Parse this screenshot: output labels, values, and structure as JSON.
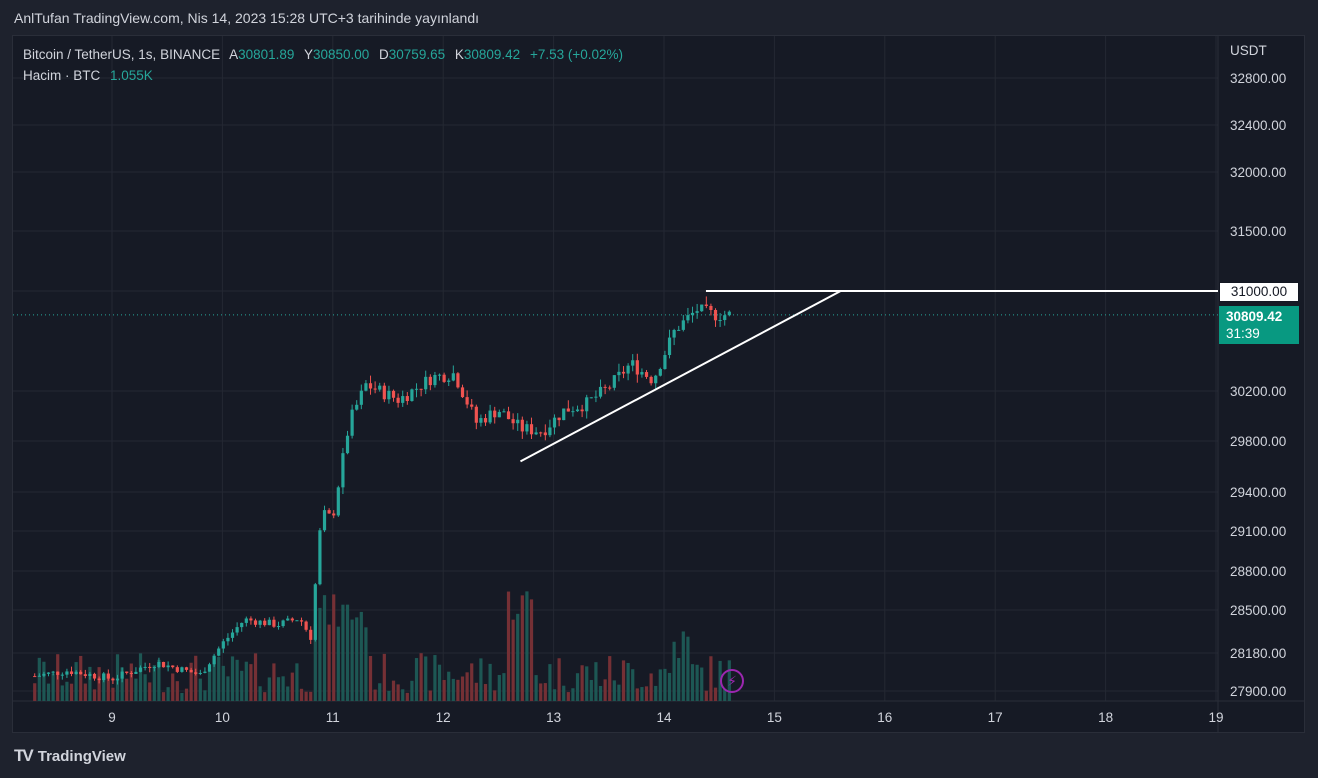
{
  "header": {
    "caption": "AnlTufan TradingView.com, Nis 14, 2023 15:28 UTC+3 tarihinde yayınlandı"
  },
  "legend": {
    "symbol": "Bitcoin / TetherUS, 1s, BINANCE",
    "open_key": "A",
    "open": "30801.89",
    "high_key": "Y",
    "high": "30850.00",
    "low_key": "D",
    "low": "30759.65",
    "close_key": "K",
    "close": "30809.42",
    "change": "+7.53 (+0.02%)",
    "volume_label": "Hacim · BTC",
    "volume_value": "1.055K"
  },
  "axis": {
    "currency": "USDT"
  },
  "price_tags": {
    "line_level": "31000.00",
    "last_price": "30809.42",
    "countdown": "31:39"
  },
  "footer": {
    "brand": "TradingView",
    "logo_text": "TV"
  },
  "icons": {
    "bolt": "lightning-icon"
  },
  "colors": {
    "up": "#26a69a",
    "down": "#ef5350",
    "background": "#161a25",
    "grid": "#242833"
  },
  "chart_data": {
    "type": "candlestick",
    "title": "Bitcoin / TetherUS, 1s, BINANCE",
    "y_ticks": [
      32800,
      32400,
      32000,
      31500,
      31000,
      30200,
      29800,
      29400,
      29100,
      28800,
      28500,
      28180,
      27900
    ],
    "y_tick_labels": [
      "32800.00",
      "32400.00",
      "32000.00",
      "31500.00",
      "31000.00",
      "30200.00",
      "29800.00",
      "29400.00",
      "29100.00",
      "28800.00",
      "28500.00",
      "28180.00",
      "27900.00"
    ],
    "x_ticks": [
      "9",
      "10",
      "11",
      "12",
      "13",
      "14",
      "15",
      "16",
      "17",
      "18",
      "19"
    ],
    "x_tick_days": [
      9,
      10,
      11,
      12,
      13,
      14,
      15,
      16,
      17,
      18,
      19
    ],
    "last_price": 30809.42,
    "grid": true,
    "trendlines": [
      {
        "name": "support",
        "from": {
          "day": 12.7,
          "price": 29640
        },
        "to": {
          "day": 15.6,
          "price": 31000
        }
      },
      {
        "name": "resistance",
        "from": {
          "day": 14.38,
          "price": 31000
        },
        "to": {
          "day": 19.5,
          "price": 31000
        }
      }
    ],
    "anchors": [
      [
        8.3,
        28010
      ],
      [
        8.6,
        28050
      ],
      [
        9.0,
        27990
      ],
      [
        9.4,
        28110
      ],
      [
        9.8,
        28020
      ],
      [
        10.0,
        28250
      ],
      [
        10.2,
        28430
      ],
      [
        10.5,
        28390
      ],
      [
        10.7,
        28440
      ],
      [
        10.8,
        28300
      ],
      [
        10.9,
        29250
      ],
      [
        11.0,
        29200
      ],
      [
        11.15,
        29950
      ],
      [
        11.3,
        30250
      ],
      [
        11.6,
        30130
      ],
      [
        11.9,
        30310
      ],
      [
        12.1,
        30340
      ],
      [
        12.3,
        29950
      ],
      [
        12.5,
        30050
      ],
      [
        12.7,
        29900
      ],
      [
        12.9,
        29880
      ],
      [
        13.1,
        30050
      ],
      [
        13.3,
        30100
      ],
      [
        13.5,
        30230
      ],
      [
        13.7,
        30420
      ],
      [
        13.9,
        30290
      ],
      [
        14.1,
        30690
      ],
      [
        14.3,
        30850
      ],
      [
        14.45,
        30810
      ],
      [
        14.62,
        30809
      ]
    ]
  }
}
